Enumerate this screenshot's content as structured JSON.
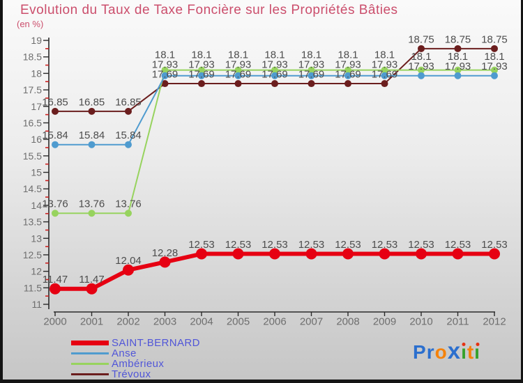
{
  "title": "Evolution du Taux de Taxe Foncière sur les Propriétés Bâties",
  "subtitle": "(en %)",
  "colors": {
    "title": "#cb4e6c",
    "legend_text": "#5156d8",
    "axis": "#2a2a2a",
    "minor_tick": "#cc2222",
    "tick_label": "#6e6e6e",
    "data_label": "#4d4d4d"
  },
  "chart_data": {
    "type": "line",
    "x": [
      2000,
      2001,
      2002,
      2003,
      2004,
      2005,
      2006,
      2007,
      2008,
      2009,
      2010,
      2011,
      2012
    ],
    "series": [
      {
        "name": "Trévoux",
        "color": "#6b1e1e",
        "emphasis": false,
        "values": [
          16.85,
          16.85,
          16.85,
          17.69,
          17.69,
          17.69,
          17.69,
          17.69,
          17.69,
          17.69,
          18.75,
          18.75,
          18.75
        ]
      },
      {
        "name": "Ambérieux",
        "color": "#97d35e",
        "emphasis": false,
        "values": [
          13.76,
          13.76,
          13.76,
          18.1,
          18.1,
          18.1,
          18.1,
          18.1,
          18.1,
          18.1,
          18.1,
          18.1,
          18.1
        ]
      },
      {
        "name": "Anse",
        "color": "#4f9bcf",
        "emphasis": false,
        "values": [
          15.84,
          15.84,
          15.84,
          17.93,
          17.93,
          17.93,
          17.93,
          17.93,
          17.93,
          17.93,
          17.93,
          17.93,
          17.93
        ]
      },
      {
        "name": "SAINT-BERNARD",
        "color": "#e60012",
        "emphasis": true,
        "values": [
          11.47,
          11.47,
          12.04,
          12.28,
          12.53,
          12.53,
          12.53,
          12.53,
          12.53,
          12.53,
          12.53,
          12.53,
          12.53
        ]
      }
    ],
    "legend_order": [
      "SAINT-BERNARD",
      "Anse",
      "Ambérieux",
      "Trévoux"
    ],
    "ylim": [
      11,
      19
    ],
    "ytick_step": 0.5,
    "minor_tick_step": 0.25,
    "grid": false,
    "legend_position": "bottom-left",
    "point_labels": true
  },
  "logo": {
    "name": "Proxiti",
    "letters": [
      {
        "ch": "P",
        "color": "#2b6fce"
      },
      {
        "ch": "r",
        "color": "#2b6fce"
      },
      {
        "ch": "o",
        "color": "#f5820b"
      },
      {
        "ch": "x",
        "color": "#2b6fce",
        "big": true
      },
      {
        "ch": "ı",
        "color": "#35a12c",
        "dot": "#e53212"
      },
      {
        "ch": "t",
        "color": "#f5820b"
      },
      {
        "ch": "ı",
        "color": "#35a12c",
        "dot": "#e53212"
      }
    ]
  }
}
